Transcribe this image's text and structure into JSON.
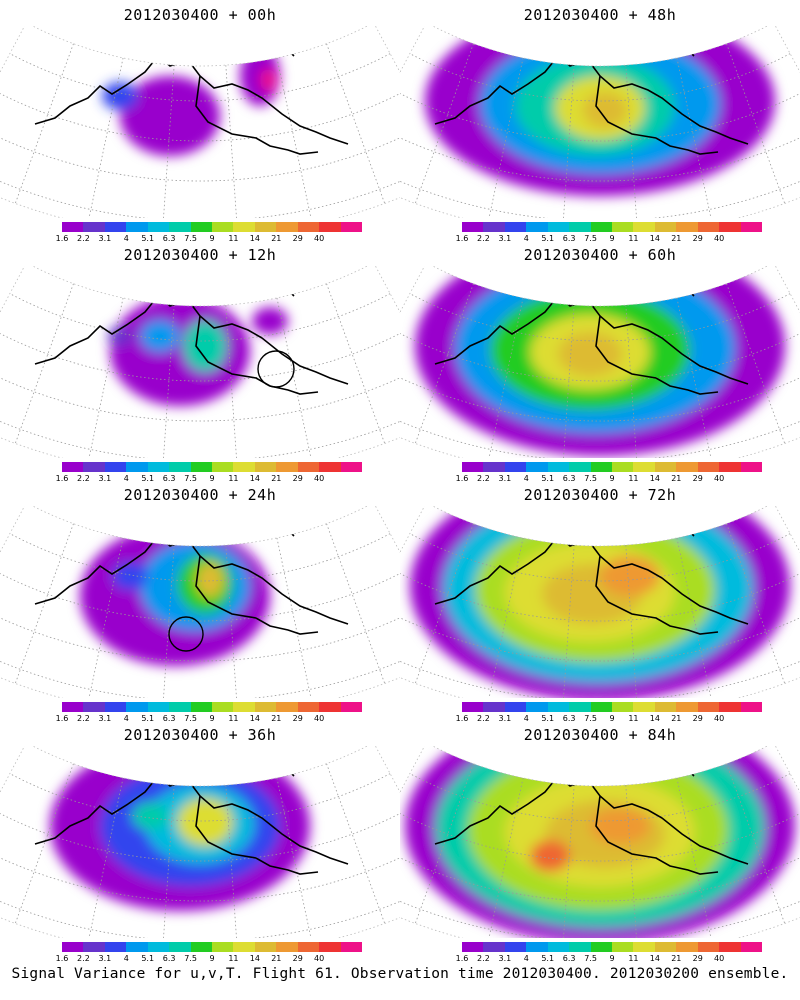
{
  "footer": "Signal Variance for u,v,T. Flight 61. Observation time 2012030400. 2012030200 ensemble.",
  "colorbar": {
    "colors": [
      "#9900cc",
      "#6633cc",
      "#3344ee",
      "#0099ee",
      "#00bbdd",
      "#00ccaa",
      "#22cc22",
      "#aadd22",
      "#dddd33",
      "#ddbb33",
      "#ee9933",
      "#ee6633",
      "#ee3333",
      "#ee1188"
    ],
    "labels": [
      "1.6",
      "2.2",
      "3.1",
      "4",
      "5.1",
      "6.3",
      "7.5",
      "9",
      "11",
      "14",
      "21",
      "29",
      "40"
    ]
  },
  "panels": [
    {
      "id": "p00",
      "title": "2012030400 + 00h",
      "col": 0,
      "row": 0,
      "intensity": 0,
      "circle": null
    },
    {
      "id": "p48",
      "title": "2012030400 + 48h",
      "col": 1,
      "row": 0,
      "intensity": 4,
      "circle": null
    },
    {
      "id": "p12",
      "title": "2012030400 + 12h",
      "col": 0,
      "row": 1,
      "intensity": 1,
      "circle": "east"
    },
    {
      "id": "p60",
      "title": "2012030400 + 60h",
      "col": 1,
      "row": 1,
      "intensity": 5,
      "circle": null
    },
    {
      "id": "p24",
      "title": "2012030400 + 24h",
      "col": 0,
      "row": 2,
      "intensity": 2,
      "circle": "south"
    },
    {
      "id": "p72",
      "title": "2012030400 + 72h",
      "col": 1,
      "row": 2,
      "intensity": 6,
      "circle": null
    },
    {
      "id": "p36",
      "title": "2012030400 + 36h",
      "col": 0,
      "row": 3,
      "intensity": 3,
      "circle": null
    },
    {
      "id": "p84",
      "title": "2012030400 + 84h",
      "col": 1,
      "row": 3,
      "intensity": 7,
      "circle": null
    }
  ]
}
